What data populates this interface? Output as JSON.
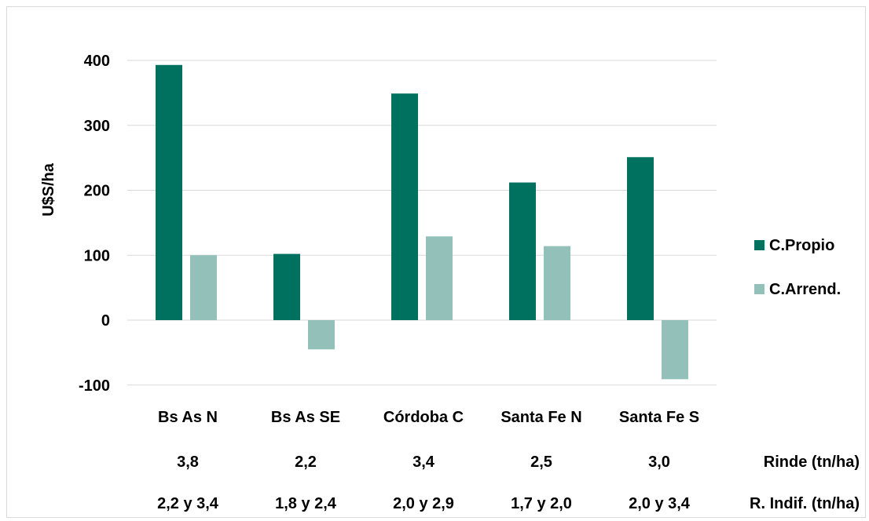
{
  "chart_data": {
    "type": "bar",
    "ylabel": "U$S/ha",
    "ylim": [
      -100,
      400
    ],
    "yticks": [
      400,
      300,
      200,
      100,
      0,
      -100
    ],
    "grid": true,
    "legend_position": "right",
    "categories": [
      "Bs As N",
      "Bs As SE",
      "Córdoba C",
      "Santa Fe N",
      "Santa Fe S"
    ],
    "series": [
      {
        "name": "C.Propio",
        "color": "#00705f",
        "values": [
          393,
          102,
          349,
          212,
          251
        ]
      },
      {
        "name": "C.Arrend.",
        "color": "#93c1b9",
        "values": [
          100,
          -45,
          129,
          114,
          -91
        ]
      }
    ],
    "extra_rows": [
      {
        "label": "Rinde (tn/ha)",
        "values": [
          "3,8",
          "2,2",
          "3,4",
          "2,5",
          "3,0"
        ]
      },
      {
        "label": "R. Indif. (tn/ha)",
        "values": [
          "2,2 y 3,4",
          "1,8 y 2,4",
          "2,0 y 2,9",
          "1,7 y 2,0",
          "2,0 y 3,4"
        ]
      }
    ]
  }
}
